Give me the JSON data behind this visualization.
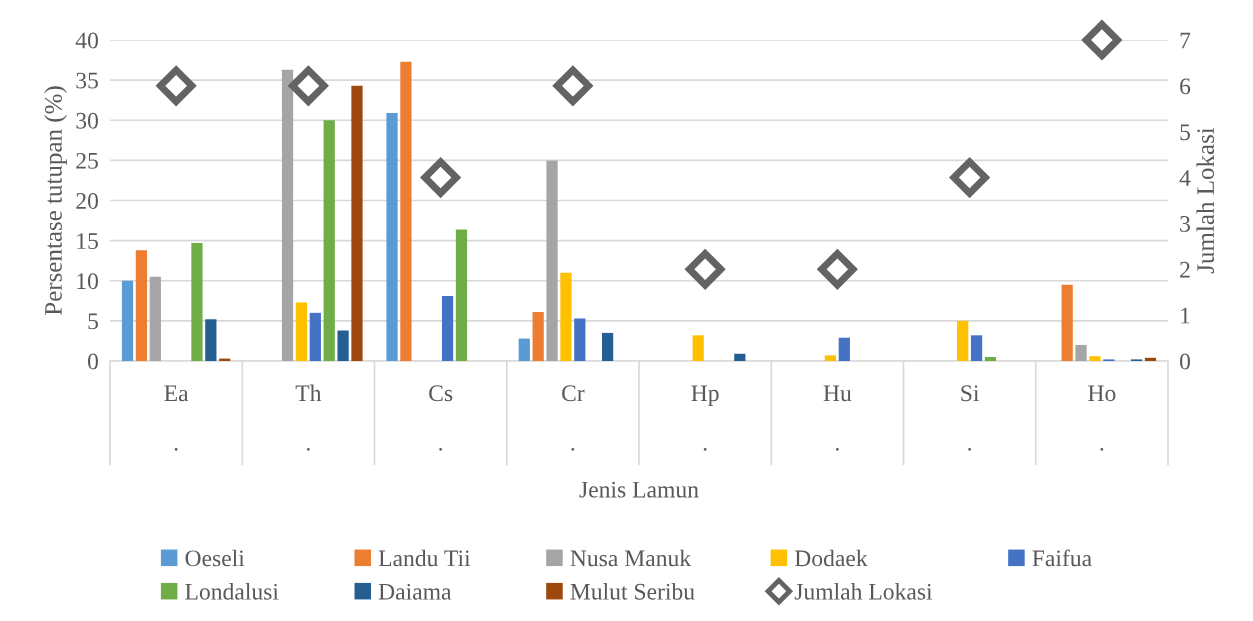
{
  "chart_data": {
    "type": "bar",
    "xlabel": "Jenis Lamun",
    "ylabel": "Persentase tutupan (%)",
    "y2label": "Jumlah Lokasi",
    "categories": [
      "Ea\n\n.",
      "Th\n\n.",
      "Cs\n\n.",
      "Cr\n\n.",
      "Hp\n\n.",
      "Hu\n\n.",
      "Si\n\n.",
      "Ho\n\n."
    ],
    "ylim": [
      0,
      40
    ],
    "yticks": [
      0,
      5,
      10,
      15,
      20,
      25,
      30,
      35,
      40
    ],
    "y2lim": [
      0,
      7
    ],
    "y2ticks": [
      0,
      1,
      2,
      3,
      4,
      5,
      6,
      7
    ],
    "grid": "y",
    "legend": "bottom",
    "series": [
      {
        "name": "Oeseli",
        "color": "#5b9bd5",
        "values": [
          10,
          null,
          30.9,
          2.8,
          null,
          null,
          null,
          null
        ]
      },
      {
        "name": "Landu Tii",
        "color": "#ed7d31",
        "values": [
          13.8,
          null,
          37.3,
          6.1,
          null,
          null,
          null,
          9.5
        ]
      },
      {
        "name": "Nusa Manuk",
        "color": "#a5a5a5",
        "values": [
          10.5,
          36.3,
          null,
          25,
          null,
          null,
          null,
          2.0
        ]
      },
      {
        "name": "Dodaek",
        "color": "#ffc000",
        "values": [
          null,
          7.3,
          null,
          11.0,
          3.2,
          0.7,
          5.0,
          0.6
        ]
      },
      {
        "name": "Faifua",
        "color": "#4472c4",
        "values": [
          null,
          6.0,
          8.1,
          5.3,
          null,
          2.9,
          3.2,
          0.2
        ]
      },
      {
        "name": "Londalusi",
        "color": "#70ad47",
        "values": [
          14.7,
          30,
          16.4,
          null,
          null,
          null,
          0.5,
          null
        ]
      },
      {
        "name": "Daiama",
        "color": "#255e91",
        "values": [
          5.2,
          3.8,
          null,
          3.5,
          0.9,
          null,
          null,
          0.2
        ]
      },
      {
        "name": "Mulut Seribu",
        "color": "#9e480e",
        "values": [
          0.3,
          34.3,
          null,
          null,
          null,
          null,
          null,
          0.4
        ]
      },
      {
        "name": "Jumlah Lokasi",
        "color": "#636363",
        "type": "scatter",
        "axis": "y2",
        "marker": "diamond",
        "values": [
          6,
          6,
          4,
          6,
          2,
          2,
          4,
          7
        ]
      }
    ]
  }
}
